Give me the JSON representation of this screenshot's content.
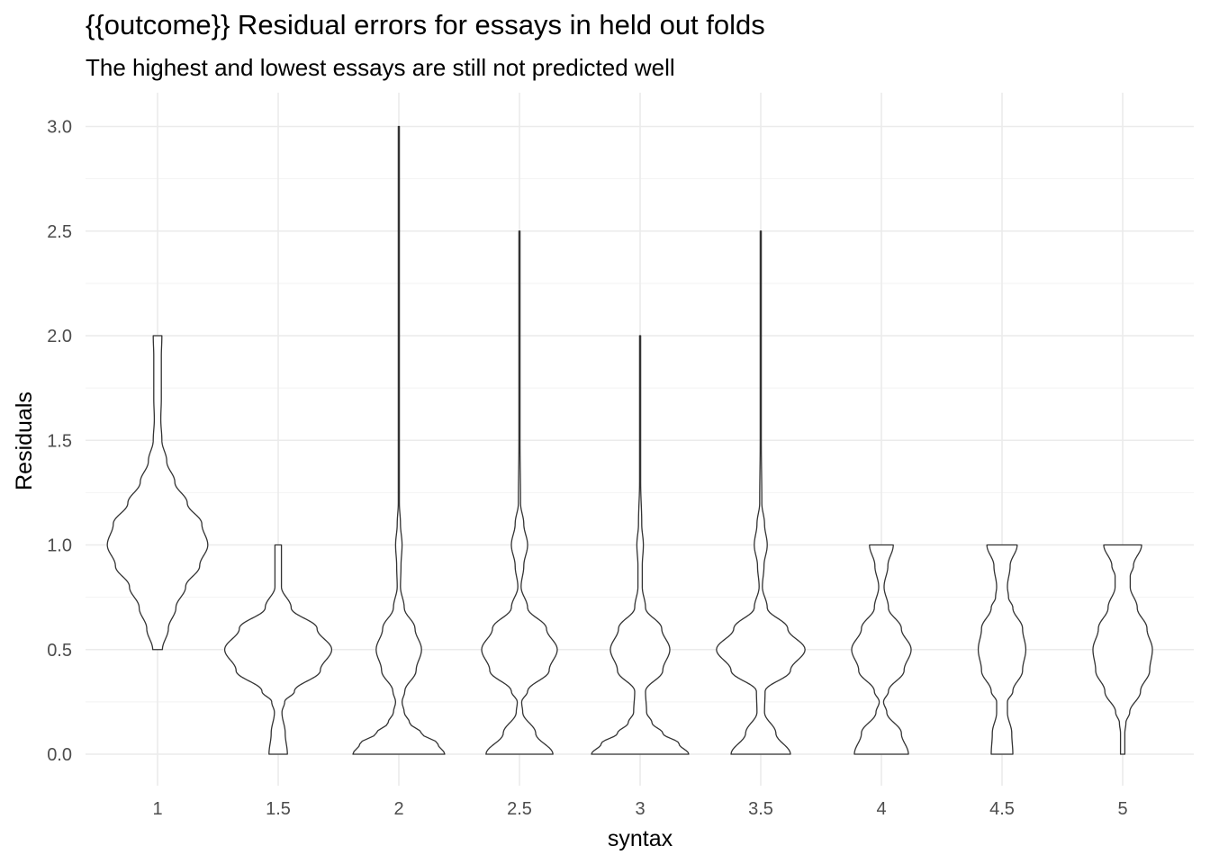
{
  "chart_data": {
    "type": "violin",
    "title": "{{outcome}} Residual errors for essays in held out folds",
    "subtitle": "The highest and lowest essays are still not predicted well",
    "xlabel": "syntax",
    "ylabel": "Residuals",
    "categories": [
      "1",
      "1.5",
      "2",
      "2.5",
      "3",
      "3.5",
      "4",
      "4.5",
      "5"
    ],
    "ylim": [
      -0.15,
      3.16
    ],
    "yticks": [
      0.0,
      0.5,
      1.0,
      1.5,
      2.0,
      2.5,
      3.0
    ],
    "ytick_labels": [
      "0.0",
      "0.5",
      "1.0",
      "1.5",
      "2.0",
      "2.5",
      "3.0"
    ],
    "grid": true,
    "violins": [
      {
        "category": "1",
        "min": 0.5,
        "max": 2.0,
        "density": [
          [
            0.5,
            0.09
          ],
          [
            0.6,
            0.2
          ],
          [
            0.7,
            0.34
          ],
          [
            0.8,
            0.52
          ],
          [
            0.9,
            0.78
          ],
          [
            1.0,
            0.93
          ],
          [
            1.1,
            0.82
          ],
          [
            1.2,
            0.55
          ],
          [
            1.3,
            0.32
          ],
          [
            1.4,
            0.17
          ],
          [
            1.5,
            0.08
          ],
          [
            1.6,
            0.06
          ],
          [
            1.7,
            0.07
          ],
          [
            1.8,
            0.07
          ],
          [
            1.9,
            0.07
          ],
          [
            2.0,
            0.08
          ]
        ]
      },
      {
        "category": "1.5",
        "min": 0.0,
        "max": 1.0,
        "density": [
          [
            0.0,
            0.17
          ],
          [
            0.1,
            0.13
          ],
          [
            0.2,
            0.07
          ],
          [
            0.25,
            0.12
          ],
          [
            0.3,
            0.3
          ],
          [
            0.4,
            0.78
          ],
          [
            0.5,
            0.99
          ],
          [
            0.6,
            0.72
          ],
          [
            0.7,
            0.24
          ],
          [
            0.8,
            0.06
          ],
          [
            0.9,
            0.06
          ],
          [
            1.0,
            0.06
          ]
        ]
      },
      {
        "category": "2",
        "min": 0.0,
        "max": 3.0,
        "density": [
          [
            0.0,
            0.85
          ],
          [
            0.05,
            0.72
          ],
          [
            0.1,
            0.42
          ],
          [
            0.15,
            0.2
          ],
          [
            0.2,
            0.1
          ],
          [
            0.25,
            0.06
          ],
          [
            0.3,
            0.11
          ],
          [
            0.4,
            0.32
          ],
          [
            0.5,
            0.42
          ],
          [
            0.6,
            0.3
          ],
          [
            0.7,
            0.1
          ],
          [
            0.8,
            0.03
          ],
          [
            0.9,
            0.04
          ],
          [
            1.0,
            0.06
          ],
          [
            1.1,
            0.03
          ],
          [
            1.2,
            0.01
          ],
          [
            1.5,
            0.005
          ],
          [
            2.0,
            0.004
          ],
          [
            2.5,
            0.004
          ],
          [
            3.0,
            0.005
          ]
        ]
      },
      {
        "category": "2.5",
        "min": 0.0,
        "max": 2.5,
        "density": [
          [
            0.0,
            0.62
          ],
          [
            0.1,
            0.3
          ],
          [
            0.2,
            0.06
          ],
          [
            0.25,
            0.04
          ],
          [
            0.3,
            0.15
          ],
          [
            0.4,
            0.55
          ],
          [
            0.5,
            0.7
          ],
          [
            0.6,
            0.5
          ],
          [
            0.7,
            0.15
          ],
          [
            0.8,
            0.03
          ],
          [
            0.9,
            0.08
          ],
          [
            1.0,
            0.15
          ],
          [
            1.1,
            0.08
          ],
          [
            1.2,
            0.02
          ],
          [
            1.5,
            0.01
          ],
          [
            2.0,
            0.008
          ],
          [
            2.5,
            0.01
          ]
        ]
      },
      {
        "category": "3",
        "min": 0.0,
        "max": 2.0,
        "density": [
          [
            0.0,
            0.9
          ],
          [
            0.05,
            0.72
          ],
          [
            0.1,
            0.42
          ],
          [
            0.15,
            0.22
          ],
          [
            0.2,
            0.12
          ],
          [
            0.3,
            0.1
          ],
          [
            0.4,
            0.42
          ],
          [
            0.5,
            0.55
          ],
          [
            0.6,
            0.4
          ],
          [
            0.7,
            0.1
          ],
          [
            0.8,
            0.04
          ],
          [
            0.9,
            0.04
          ],
          [
            1.0,
            0.06
          ],
          [
            1.1,
            0.03
          ],
          [
            1.3,
            0.01
          ],
          [
            1.6,
            0.01
          ],
          [
            2.0,
            0.008
          ]
        ]
      },
      {
        "category": "3.5",
        "min": 0.0,
        "max": 2.5,
        "density": [
          [
            0.0,
            0.55
          ],
          [
            0.1,
            0.28
          ],
          [
            0.2,
            0.07
          ],
          [
            0.3,
            0.08
          ],
          [
            0.4,
            0.55
          ],
          [
            0.5,
            0.82
          ],
          [
            0.6,
            0.5
          ],
          [
            0.7,
            0.12
          ],
          [
            0.8,
            0.03
          ],
          [
            0.9,
            0.06
          ],
          [
            1.0,
            0.12
          ],
          [
            1.1,
            0.07
          ],
          [
            1.2,
            0.02
          ],
          [
            1.5,
            0.01
          ],
          [
            2.0,
            0.006
          ],
          [
            2.5,
            0.008
          ]
        ]
      },
      {
        "category": "4",
        "min": 0.0,
        "max": 1.0,
        "density": [
          [
            0.0,
            0.5
          ],
          [
            0.1,
            0.37
          ],
          [
            0.2,
            0.1
          ],
          [
            0.25,
            0.04
          ],
          [
            0.3,
            0.13
          ],
          [
            0.4,
            0.42
          ],
          [
            0.5,
            0.55
          ],
          [
            0.6,
            0.37
          ],
          [
            0.7,
            0.13
          ],
          [
            0.8,
            0.05
          ],
          [
            0.9,
            0.12
          ],
          [
            1.0,
            0.22
          ]
        ]
      },
      {
        "category": "4.5",
        "min": 0.0,
        "max": 1.0,
        "density": [
          [
            0.0,
            0.2
          ],
          [
            0.1,
            0.18
          ],
          [
            0.2,
            0.1
          ],
          [
            0.25,
            0.1
          ],
          [
            0.3,
            0.2
          ],
          [
            0.4,
            0.38
          ],
          [
            0.5,
            0.44
          ],
          [
            0.6,
            0.38
          ],
          [
            0.7,
            0.2
          ],
          [
            0.75,
            0.12
          ],
          [
            0.8,
            0.1
          ],
          [
            0.9,
            0.15
          ],
          [
            1.0,
            0.28
          ]
        ]
      },
      {
        "category": "5",
        "min": 0.0,
        "max": 1.0,
        "density": [
          [
            0.0,
            0.04
          ],
          [
            0.1,
            0.04
          ],
          [
            0.15,
            0.06
          ],
          [
            0.2,
            0.13
          ],
          [
            0.3,
            0.33
          ],
          [
            0.4,
            0.5
          ],
          [
            0.5,
            0.55
          ],
          [
            0.6,
            0.45
          ],
          [
            0.7,
            0.27
          ],
          [
            0.8,
            0.14
          ],
          [
            0.85,
            0.14
          ],
          [
            0.9,
            0.2
          ],
          [
            1.0,
            0.35
          ]
        ]
      }
    ]
  }
}
